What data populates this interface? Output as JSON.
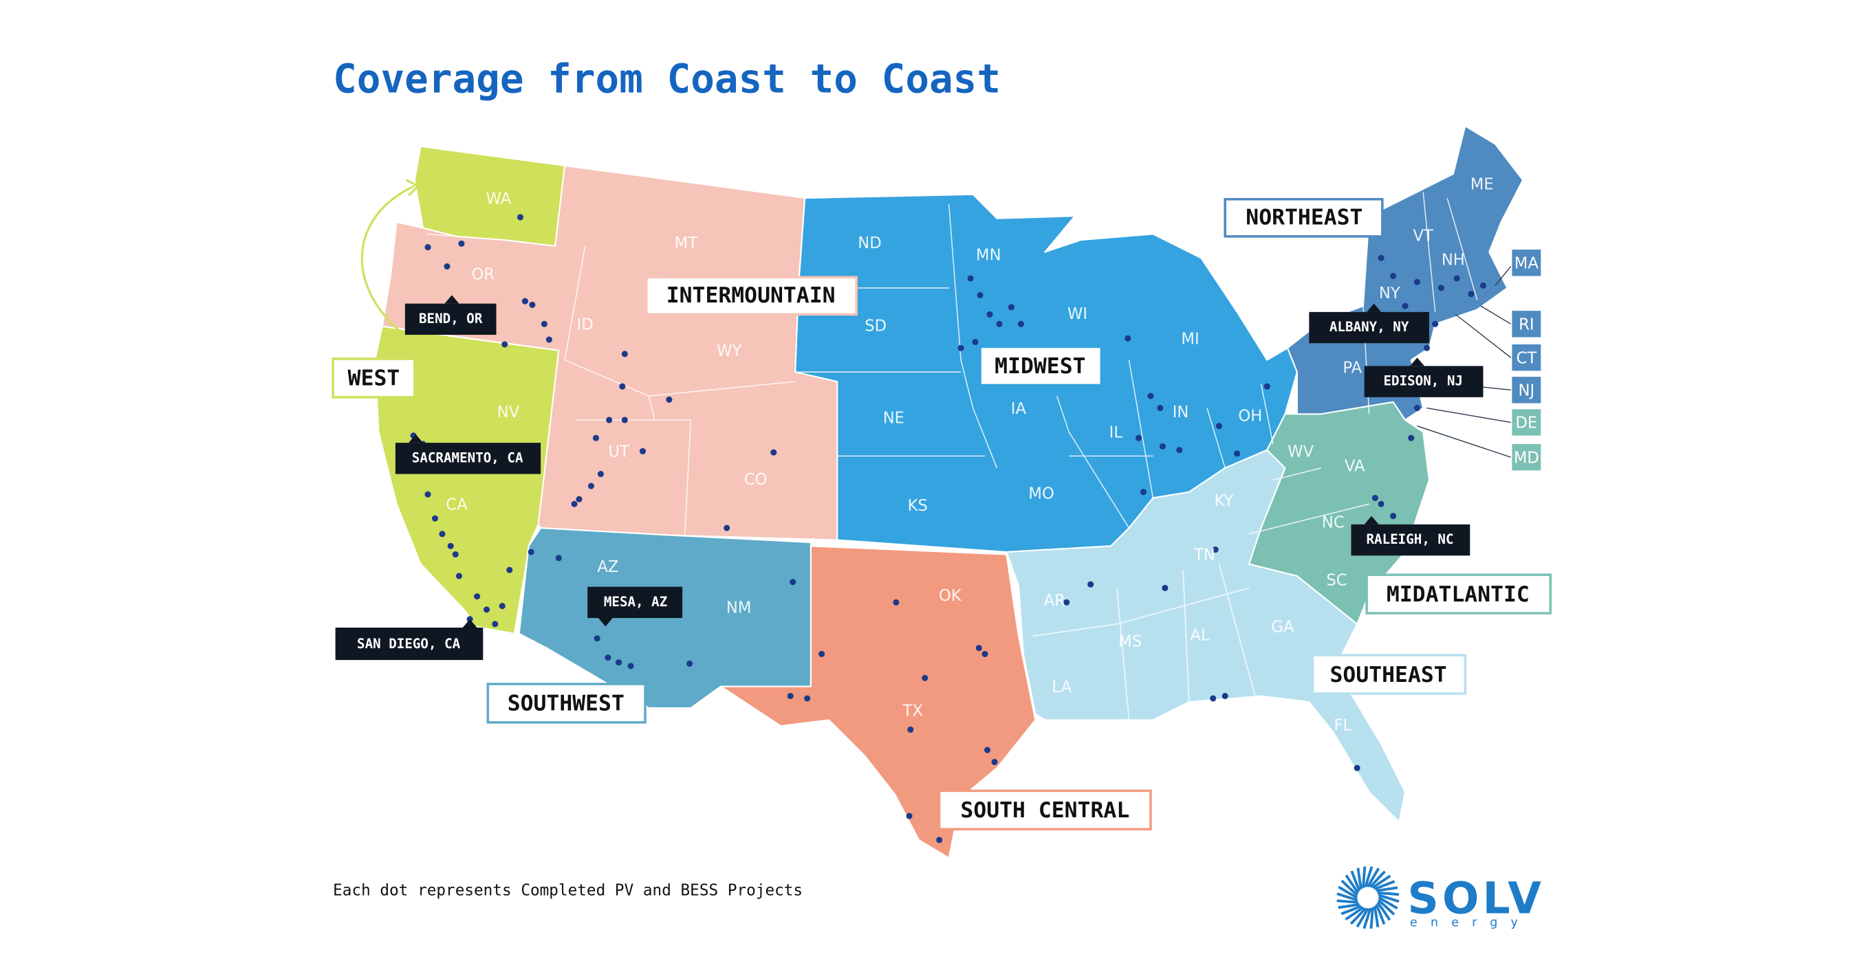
{
  "title": "Coverage from Coast to Coast",
  "regions": [
    {
      "name": "WEST",
      "color": "#cfe05a",
      "states": [
        "WA",
        "CA",
        "NV"
      ]
    },
    {
      "name": "INTERMOUNTAIN",
      "color": "#f6c4b8",
      "states": [
        "OR",
        "MT",
        "ID",
        "WY",
        "UT",
        "CO"
      ]
    },
    {
      "name": "MIDWEST",
      "color": "#35a3df",
      "states": [
        "ND",
        "SD",
        "NE",
        "KS",
        "MN",
        "IA",
        "MO",
        "WI",
        "IL",
        "MI",
        "IN",
        "OH"
      ]
    },
    {
      "name": "NORTHEAST",
      "color": "#4f8ac0",
      "states": [
        "ME",
        "VT",
        "NH",
        "NY",
        "PA",
        "MA",
        "RI",
        "CT",
        "NJ"
      ]
    },
    {
      "name": "MIDATLANTIC",
      "color": "#7bc0b3",
      "states": [
        "WV",
        "VA",
        "NC",
        "SC",
        "DE",
        "MD"
      ]
    },
    {
      "name": "SOUTHEAST",
      "color": "#b7e0ef",
      "states": [
        "KY",
        "TN",
        "AR",
        "MS",
        "AL",
        "GA",
        "LA",
        "FL"
      ]
    },
    {
      "name": "SOUTHWEST",
      "color": "#5eaac8",
      "states": [
        "AZ",
        "NM"
      ]
    },
    {
      "name": "SOUTH CENTRAL",
      "color": "#f29a80",
      "states": [
        "OK",
        "TX"
      ]
    }
  ],
  "cities": [
    "BEND, OR",
    "SACRAMENTO, CA",
    "SAN DIEGO, CA",
    "MESA, AZ",
    "ALBANY, NY",
    "EDISON, NJ",
    "RALEIGH, NC"
  ],
  "footnote": "Each dot represents Completed PV and BESS Projects",
  "logo": {
    "name": "SOLV",
    "tagline": "energy"
  }
}
